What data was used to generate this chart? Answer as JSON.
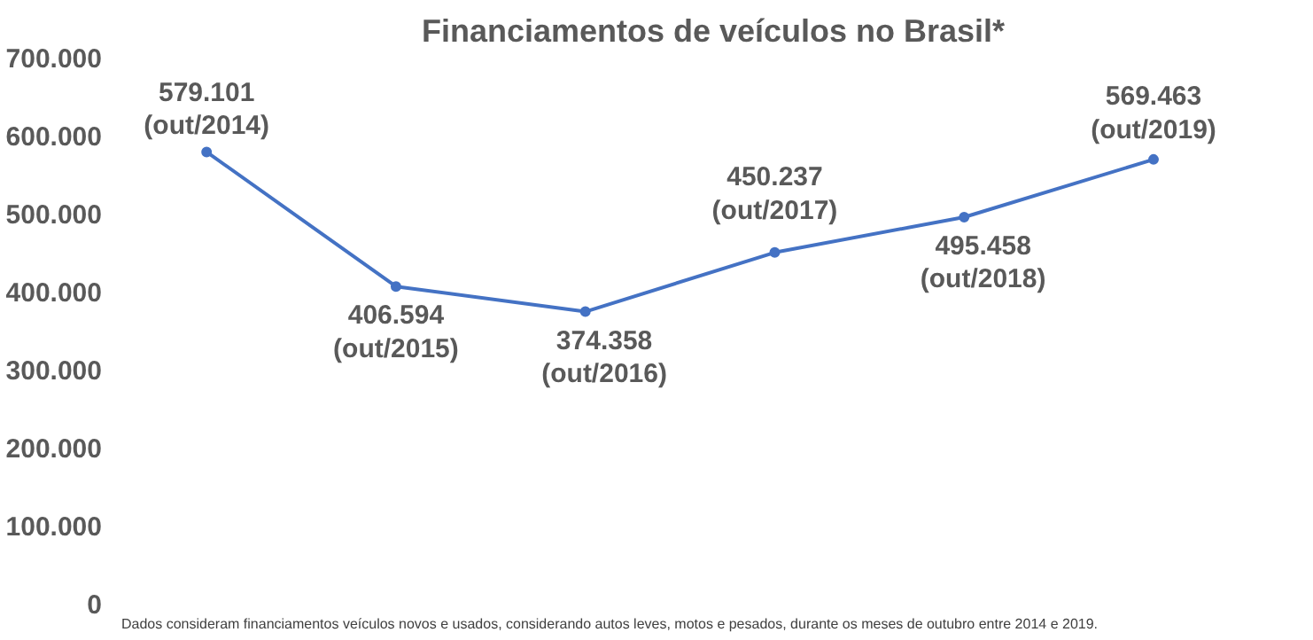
{
  "chart_data": {
    "type": "line",
    "title": "Financiamentos de veículos no Brasil*",
    "categories": [
      null,
      null,
      null,
      null,
      null,
      null
    ],
    "series": [
      {
        "color": "#4472c4",
        "values": [
          579101,
          406594,
          374358,
          450237,
          495458,
          569463
        ],
        "value_labels": [
          "579.101\n(out/2014)",
          "406.594\n(out/2015)",
          "374.358\n(out/2016)",
          "450.237\n(out/2017)",
          "495.458\n(out/2018)",
          "569.463\n(out/2019)"
        ]
      }
    ],
    "ylim": [
      0,
      700000
    ],
    "yticks": [
      {
        "value": 0,
        "label": "0"
      },
      {
        "value": 100000,
        "label": "100.000"
      },
      {
        "value": 200000,
        "label": "200.000"
      },
      {
        "value": 300000,
        "label": "300.000"
      },
      {
        "value": 400000,
        "label": "400.000"
      },
      {
        "value": 500000,
        "label": "500.000"
      },
      {
        "value": 600000,
        "label": "600.000"
      },
      {
        "value": 700000,
        "label": "700.000"
      }
    ],
    "tick_labels": "y",
    "grid": false,
    "marker": "circle",
    "line_style": "solid",
    "annotations": [
      "Dados consideram financiamentos veículos novos e usados, considerando autos leves, motos e pesados, durante os meses de outubro entre 2014 e 2019."
    ]
  }
}
